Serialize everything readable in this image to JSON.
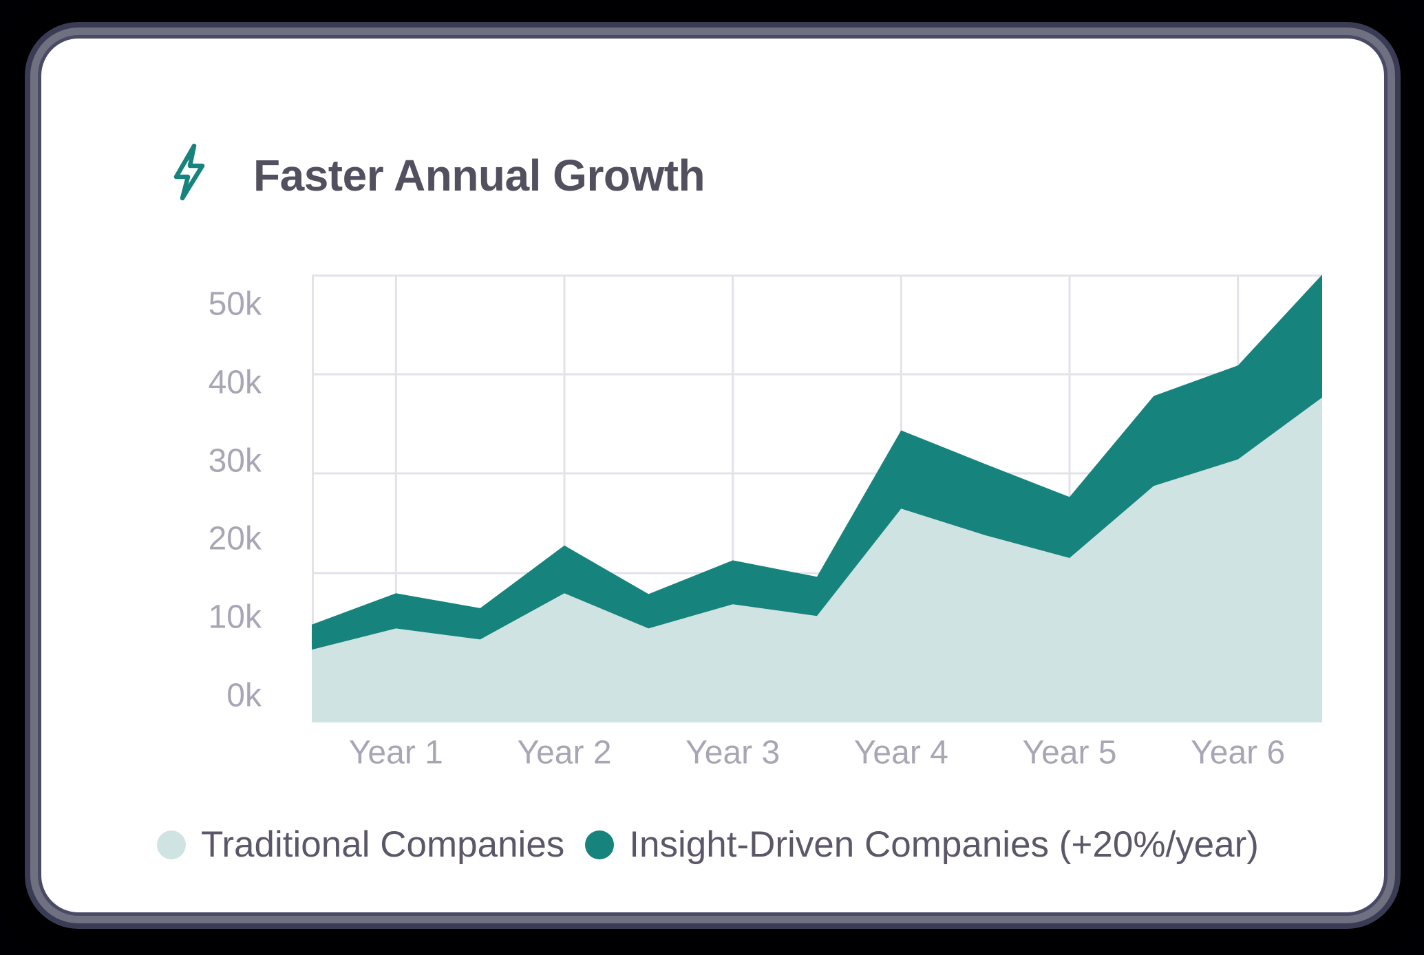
{
  "card": {
    "title": "Faster Annual Growth",
    "title_icon": "lightning-bolt"
  },
  "chart_data": {
    "type": "area",
    "title": "Faster Annual Growth",
    "x_tick_labels": [
      "Year 1",
      "Year 2",
      "Year 3",
      "Year 4",
      "Year 5",
      "Year 6"
    ],
    "y_tick_labels": [
      "0k",
      "10k",
      "20k",
      "30k",
      "40k",
      "50k"
    ],
    "x_years": [
      0.5,
      1,
      1.5,
      2,
      2.5,
      3,
      3.5,
      4,
      4.5,
      5,
      5.5,
      6,
      6.5
    ],
    "series": [
      {
        "name": "Traditional Companies",
        "color": "#cfe4e2",
        "values_thousands": [
          9.3,
          12.0,
          10.6,
          16.5,
          12.0,
          15.1,
          13.6,
          27.3,
          23.9,
          21.0,
          30.2,
          33.6,
          41.5
        ]
      },
      {
        "name": "Insight-Driven Companies (+20%/year)",
        "color": "#17837d",
        "values_thousands": [
          12.5,
          16.5,
          14.6,
          22.6,
          16.4,
          20.7,
          18.6,
          37.3,
          33.0,
          28.8,
          41.7,
          45.6,
          57.2
        ]
      }
    ],
    "xlim_years": [
      0.5,
      6.5
    ],
    "ylim_thousands": [
      0,
      57.2
    ],
    "units": "thousands",
    "grid": true,
    "legend_position": "bottom-left"
  },
  "colors": {
    "accent_dark_teal": "#17837d",
    "accent_light_teal": "#cfe4e2",
    "title_text": "#524f5e",
    "tick_text": "#a8a5b5",
    "legend_text": "#5b5768",
    "gridline": "#e3e2e9",
    "card_background": "#ffffff",
    "page_background": "#000005"
  }
}
